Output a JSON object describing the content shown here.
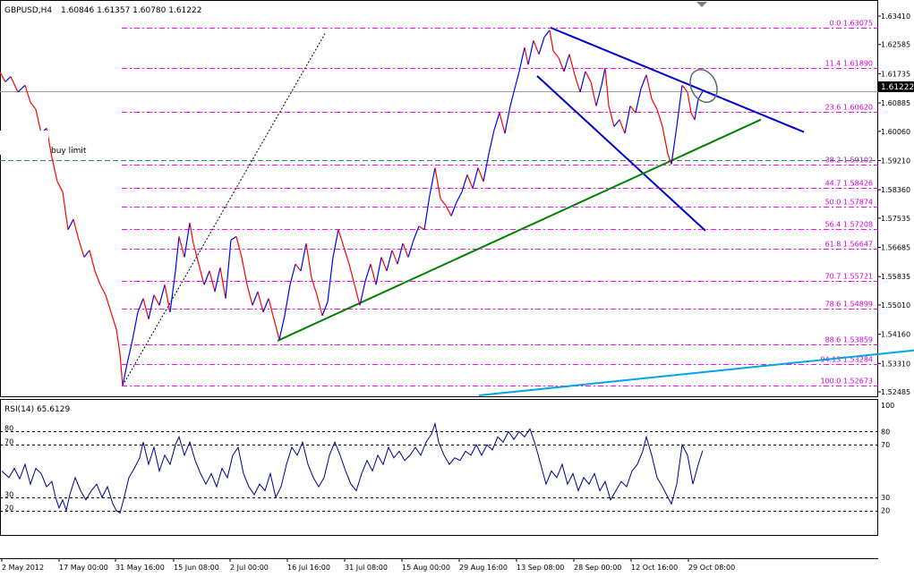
{
  "header": {
    "symbol": "GBPUSD,H4",
    "ohlc": "1.60846 1.61357 1.60780 1.61222"
  },
  "rsi_header": "RSI(14) 65.6129",
  "buy_limit_label": "buy limit",
  "current_price_label": "1.61222",
  "colors": {
    "background": "#ffffff",
    "grid_frame": "#000000",
    "bull_candle": "#0000ff",
    "bear_candle": "#ff0000",
    "fib_line": "#ff00ff",
    "fib_text": "#cc00cc",
    "channel_line": "#0000cd",
    "support_line": "#008000",
    "long_trendline": "#00a2e8",
    "rsi_line": "#00008b",
    "circle": "#556b6b"
  },
  "chart_data": [
    {
      "type": "line",
      "title": "GBPUSD,H4",
      "price_axis_ticks": [
        "1.63410",
        "1.62585",
        "1.61735",
        "1.60885",
        "1.60060",
        "1.59210",
        "1.58360",
        "1.57535",
        "1.56685",
        "1.55835",
        "1.55010",
        "1.54160",
        "1.53310",
        "1.52485"
      ],
      "ylim": [
        1.5238,
        1.6351
      ],
      "time_axis_ticks": [
        "2 May 2012",
        "17 May 00:00",
        "31 May 16:00",
        "15 Jun 08:00",
        "2 Jul 00:00",
        "16 Jul 16:00",
        "31 Jul 08:00",
        "15 Aug 00:00",
        "29 Aug 16:00",
        "13 Sep 08:00",
        "28 Sep 00:00",
        "12 Oct 16:00",
        "29 Oct 08:00"
      ],
      "fibonacci_levels": [
        {
          "label": "0.0",
          "price": 1.63075
        },
        {
          "label": "11.4",
          "price": 1.6189
        },
        {
          "label": "23.6",
          "price": 1.6062
        },
        {
          "label": "38.2",
          "price": 1.59102
        },
        {
          "label": "44.7",
          "price": 1.58426
        },
        {
          "label": "50.0",
          "price": 1.57874
        },
        {
          "label": "56.4",
          "price": 1.57208
        },
        {
          "label": "61.8",
          "price": 1.56647
        },
        {
          "label": "70.7",
          "price": 1.55721
        },
        {
          "label": "78.6",
          "price": 1.54899
        },
        {
          "label": "88.6",
          "price": 1.53859
        },
        {
          "label": "94.13",
          "price": 1.53284
        },
        {
          "label": "100.0",
          "price": 1.52673
        }
      ],
      "buy_limit_price": 1.5921,
      "current_price": 1.61222,
      "price_path": [
        [
          0,
          1.6178
        ],
        [
          6,
          1.615
        ],
        [
          12,
          1.6165
        ],
        [
          20,
          1.612
        ],
        [
          28,
          1.614
        ],
        [
          34,
          1.609
        ],
        [
          40,
          1.607
        ],
        [
          46,
          1.6
        ],
        [
          52,
          1.6015
        ],
        [
          58,
          1.593
        ],
        [
          64,
          1.586
        ],
        [
          70,
          1.583
        ],
        [
          76,
          1.572
        ],
        [
          82,
          1.575
        ],
        [
          88,
          1.569
        ],
        [
          94,
          1.564
        ],
        [
          100,
          1.566
        ],
        [
          106,
          1.56
        ],
        [
          112,
          1.556
        ],
        [
          118,
          1.553
        ],
        [
          124,
          1.548
        ],
        [
          130,
          1.543
        ],
        [
          134,
          1.536
        ],
        [
          137,
          1.5267
        ],
        [
          142,
          1.533
        ],
        [
          148,
          1.54
        ],
        [
          154,
          1.548
        ],
        [
          160,
          1.552
        ],
        [
          166,
          1.546
        ],
        [
          172,
          1.553
        ],
        [
          178,
          1.55
        ],
        [
          184,
          1.556
        ],
        [
          190,
          1.548
        ],
        [
          196,
          1.56
        ],
        [
          200,
          1.57
        ],
        [
          206,
          1.564
        ],
        [
          212,
          1.574
        ],
        [
          216,
          1.568
        ],
        [
          222,
          1.562
        ],
        [
          228,
          1.556
        ],
        [
          234,
          1.56
        ],
        [
          240,
          1.554
        ],
        [
          246,
          1.561
        ],
        [
          252,
          1.552
        ],
        [
          258,
          1.569
        ],
        [
          264,
          1.57
        ],
        [
          270,
          1.564
        ],
        [
          276,
          1.556
        ],
        [
          282,
          1.55
        ],
        [
          288,
          1.554
        ],
        [
          294,
          1.548
        ],
        [
          300,
          1.552
        ],
        [
          306,
          1.546
        ],
        [
          312,
          1.54
        ],
        [
          318,
          1.547
        ],
        [
          324,
          1.556
        ],
        [
          330,
          1.562
        ],
        [
          336,
          1.56
        ],
        [
          342,
          1.568
        ],
        [
          348,
          1.558
        ],
        [
          354,
          1.553
        ],
        [
          360,
          1.547
        ],
        [
          366,
          1.551
        ],
        [
          372,
          1.564
        ],
        [
          378,
          1.572
        ],
        [
          384,
          1.567
        ],
        [
          390,
          1.562
        ],
        [
          396,
          1.556
        ],
        [
          402,
          1.55
        ],
        [
          408,
          1.557
        ],
        [
          414,
          1.562
        ],
        [
          420,
          1.556
        ],
        [
          426,
          1.564
        ],
        [
          432,
          1.56
        ],
        [
          438,
          1.566
        ],
        [
          444,
          1.562
        ],
        [
          450,
          1.568
        ],
        [
          456,
          1.564
        ],
        [
          462,
          1.569
        ],
        [
          468,
          1.573
        ],
        [
          474,
          1.572
        ],
        [
          480,
          1.582
        ],
        [
          486,
          1.59
        ],
        [
          492,
          1.581
        ],
        [
          498,
          1.579
        ],
        [
          504,
          1.576
        ],
        [
          510,
          1.58
        ],
        [
          516,
          1.583
        ],
        [
          522,
          1.588
        ],
        [
          528,
          1.584
        ],
        [
          534,
          1.59
        ],
        [
          540,
          1.586
        ],
        [
          546,
          1.594
        ],
        [
          552,
          1.601
        ],
        [
          558,
          1.606
        ],
        [
          564,
          1.6
        ],
        [
          570,
          1.608
        ],
        [
          576,
          1.614
        ],
        [
          580,
          1.618
        ],
        [
          586,
          1.625
        ],
        [
          590,
          1.62
        ],
        [
          596,
          1.627
        ],
        [
          602,
          1.623
        ],
        [
          608,
          1.628
        ],
        [
          614,
          1.63
        ],
        [
          618,
          1.624
        ],
        [
          624,
          1.622
        ],
        [
          630,
          1.618
        ],
        [
          636,
          1.623
        ],
        [
          642,
          1.617
        ],
        [
          648,
          1.612
        ],
        [
          654,
          1.618
        ],
        [
          660,
          1.615
        ],
        [
          666,
          1.608
        ],
        [
          672,
          1.614
        ],
        [
          676,
          1.619
        ],
        [
          680,
          1.608
        ],
        [
          686,
          1.602
        ],
        [
          692,
          1.604
        ],
        [
          698,
          1.6
        ],
        [
          704,
          1.608
        ],
        [
          710,
          1.606
        ],
        [
          716,
          1.613
        ],
        [
          722,
          1.617
        ],
        [
          728,
          1.61
        ],
        [
          734,
          1.607
        ],
        [
          740,
          1.602
        ],
        [
          746,
          1.594
        ],
        [
          750,
          1.591
        ],
        [
          756,
          1.602
        ],
        [
          762,
          1.614
        ],
        [
          768,
          1.612
        ],
        [
          772,
          1.606
        ],
        [
          776,
          1.604
        ],
        [
          780,
          1.61
        ],
        [
          785,
          1.6122
        ]
      ],
      "trendlines": [
        {
          "name": "channel_upper",
          "color": "#0000cd",
          "points": [
            [
              615,
              1.63075
            ],
            [
              898,
              1.6004
            ]
          ]
        },
        {
          "name": "channel_lower",
          "color": "#0000cd",
          "points": [
            [
              600,
              1.6167
            ],
            [
              788,
              1.5717
            ]
          ]
        },
        {
          "name": "support",
          "color": "#008000",
          "points": [
            [
              310,
              1.5397
            ],
            [
              850,
              1.604
            ]
          ]
        },
        {
          "name": "long_trend",
          "color": "#00a2e8",
          "points": [
            [
              535,
              1.5238
            ],
            [
              1021,
              1.5369
            ]
          ]
        },
        {
          "name": "dotted_projection",
          "color": "#000000",
          "points": [
            [
              137,
              1.5267
            ],
            [
              363,
              1.629
            ]
          ]
        }
      ]
    },
    {
      "type": "line",
      "title": "RSI(14) 65.6129",
      "axis_ticks": [
        "100",
        "80",
        "70",
        "30",
        "20"
      ],
      "ylim": [
        0,
        100
      ],
      "levels": [
        80,
        70,
        30,
        20
      ],
      "last_value": 65.6129,
      "rsi_path": [
        [
          2,
          50
        ],
        [
          10,
          45
        ],
        [
          16,
          52
        ],
        [
          22,
          44
        ],
        [
          28,
          55
        ],
        [
          34,
          40
        ],
        [
          40,
          52
        ],
        [
          46,
          48
        ],
        [
          52,
          38
        ],
        [
          58,
          42
        ],
        [
          62,
          30
        ],
        [
          66,
          22
        ],
        [
          70,
          28
        ],
        [
          74,
          20
        ],
        [
          78,
          32
        ],
        [
          84,
          45
        ],
        [
          90,
          35
        ],
        [
          96,
          28
        ],
        [
          102,
          35
        ],
        [
          108,
          40
        ],
        [
          114,
          30
        ],
        [
          120,
          38
        ],
        [
          126,
          25
        ],
        [
          130,
          20
        ],
        [
          134,
          18
        ],
        [
          138,
          28
        ],
        [
          144,
          45
        ],
        [
          150,
          52
        ],
        [
          156,
          60
        ],
        [
          160,
          72
        ],
        [
          166,
          55
        ],
        [
          172,
          68
        ],
        [
          178,
          50
        ],
        [
          184,
          62
        ],
        [
          190,
          55
        ],
        [
          196,
          70
        ],
        [
          200,
          76
        ],
        [
          206,
          62
        ],
        [
          212,
          72
        ],
        [
          218,
          58
        ],
        [
          224,
          48
        ],
        [
          230,
          40
        ],
        [
          236,
          48
        ],
        [
          242,
          38
        ],
        [
          248,
          52
        ],
        [
          254,
          45
        ],
        [
          260,
          62
        ],
        [
          266,
          68
        ],
        [
          272,
          48
        ],
        [
          278,
          38
        ],
        [
          284,
          32
        ],
        [
          290,
          40
        ],
        [
          296,
          35
        ],
        [
          302,
          48
        ],
        [
          308,
          30
        ],
        [
          314,
          38
        ],
        [
          320,
          55
        ],
        [
          326,
          68
        ],
        [
          332,
          62
        ],
        [
          338,
          72
        ],
        [
          344,
          55
        ],
        [
          350,
          45
        ],
        [
          356,
          38
        ],
        [
          362,
          45
        ],
        [
          368,
          62
        ],
        [
          374,
          72
        ],
        [
          380,
          62
        ],
        [
          386,
          50
        ],
        [
          392,
          40
        ],
        [
          398,
          35
        ],
        [
          404,
          48
        ],
        [
          410,
          58
        ],
        [
          416,
          50
        ],
        [
          422,
          62
        ],
        [
          428,
          55
        ],
        [
          434,
          68
        ],
        [
          440,
          60
        ],
        [
          446,
          65
        ],
        [
          452,
          58
        ],
        [
          458,
          62
        ],
        [
          464,
          68
        ],
        [
          470,
          62
        ],
        [
          476,
          72
        ],
        [
          482,
          78
        ],
        [
          486,
          86
        ],
        [
          490,
          72
        ],
        [
          496,
          62
        ],
        [
          502,
          55
        ],
        [
          508,
          60
        ],
        [
          514,
          58
        ],
        [
          520,
          65
        ],
        [
          526,
          62
        ],
        [
          532,
          70
        ],
        [
          538,
          62
        ],
        [
          544,
          70
        ],
        [
          550,
          66
        ],
        [
          556,
          76
        ],
        [
          562,
          72
        ],
        [
          568,
          80
        ],
        [
          574,
          74
        ],
        [
          580,
          80
        ],
        [
          586,
          76
        ],
        [
          592,
          82
        ],
        [
          598,
          70
        ],
        [
          604,
          55
        ],
        [
          610,
          40
        ],
        [
          616,
          50
        ],
        [
          622,
          45
        ],
        [
          628,
          55
        ],
        [
          634,
          40
        ],
        [
          640,
          48
        ],
        [
          646,
          35
        ],
        [
          652,
          45
        ],
        [
          658,
          40
        ],
        [
          664,
          48
        ],
        [
          670,
          35
        ],
        [
          676,
          42
        ],
        [
          682,
          28
        ],
        [
          688,
          35
        ],
        [
          694,
          42
        ],
        [
          700,
          38
        ],
        [
          706,
          50
        ],
        [
          712,
          55
        ],
        [
          718,
          65
        ],
        [
          722,
          76
        ],
        [
          728,
          62
        ],
        [
          734,
          45
        ],
        [
          740,
          38
        ],
        [
          746,
          30
        ],
        [
          750,
          25
        ],
        [
          756,
          40
        ],
        [
          762,
          70
        ],
        [
          768,
          62
        ],
        [
          774,
          40
        ],
        [
          780,
          55
        ],
        [
          785,
          65.6
        ]
      ]
    }
  ]
}
